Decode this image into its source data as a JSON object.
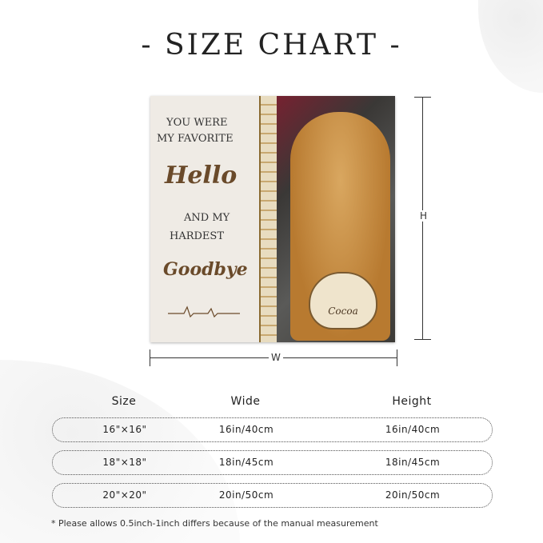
{
  "title": "- SIZE CHART -",
  "pillow": {
    "line1": "YOU WERE",
    "line2": "MY FAVORITE",
    "script1": "Hello",
    "line3": "AND MY",
    "line4": "HARDEST",
    "script2": "Goodbye",
    "paw_name": "Cocoa"
  },
  "dimensions": {
    "height_label": "H",
    "width_label": "W"
  },
  "table": {
    "headers": [
      "Size",
      "Wide",
      "Height"
    ],
    "rows": [
      [
        "16\"×16\"",
        "16in/40cm",
        "16in/40cm"
      ],
      [
        "18\"×18\"",
        "18in/45cm",
        "18in/45cm"
      ],
      [
        "20\"×20\"",
        "20in/50cm",
        "20in/50cm"
      ]
    ]
  },
  "note": "* Please allows 0.5inch-1inch differs because of the  manual measurement"
}
